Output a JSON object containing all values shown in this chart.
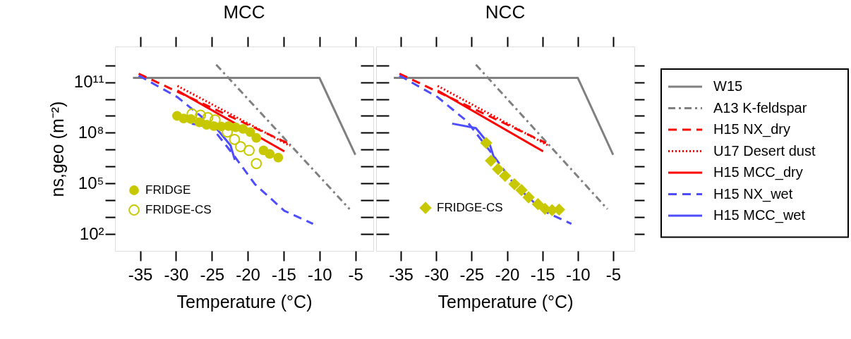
{
  "chart_data": [
    {
      "type": "line",
      "title": "MCC",
      "xlabel": "Temperature (°C)",
      "ylabel": "ns,geo (m⁻²)",
      "xlim": [
        -38.5,
        -2.5
      ],
      "xticks": [
        -35,
        -30,
        -25,
        -20,
        -15,
        -10,
        -5
      ],
      "ylim": [
        10,
        13000000000000.0
      ],
      "log": true,
      "yticks": [
        {
          "value": 100.0,
          "label": "10²"
        },
        {
          "value": 1000.0,
          "label": null
        },
        {
          "value": 10000.0,
          "label": null
        },
        {
          "value": 100000.0,
          "label": "10⁵"
        },
        {
          "value": 1000000.0,
          "label": null
        },
        {
          "value": 10000000.0,
          "label": null
        },
        {
          "value": 100000000.0,
          "label": "10⁸"
        },
        {
          "value": 1000000000.0,
          "label": null
        },
        {
          "value": 10000000000.0,
          "label": null
        },
        {
          "value": 100000000000.0,
          "label": "10¹¹"
        },
        {
          "value": 1000000000000.0,
          "label": null
        }
      ],
      "grid": false,
      "legend": "bottom left",
      "series": [
        {
          "color": "#808080",
          "line_style": "solid",
          "x": [
            -36,
            -10,
            -5
          ],
          "values": [
            180000000000.0,
            180000000000.0,
            5000000.0
          ]
        },
        {
          "color": "#808080",
          "line_style": "dashdot",
          "x": [
            -24.4,
            -5.8
          ],
          "values": [
            1100000000000.0,
            3000.0
          ]
        },
        {
          "color": "#ff0000",
          "line_style": "dashed",
          "x": [
            -35.2,
            -14.5
          ],
          "values": [
            320000000000.0,
            25000000.0
          ]
        },
        {
          "color": "#ff0000",
          "line_style": "dotted",
          "x": [
            -29.8,
            -14.1
          ],
          "values": [
            60000000000.0,
            17000000.0
          ]
        },
        {
          "color": "#ff0000",
          "line_style": "solid",
          "x": [
            -29.8,
            -14.9
          ],
          "values": [
            32000000000.0,
            8000000.0
          ]
        },
        {
          "color": "#4d4dff",
          "line_style": "dashed",
          "x": [
            -35.2,
            -29.8,
            -25.7,
            -22.0,
            -19.0,
            -14.9,
            -10.9
          ],
          "values": [
            250000000000.0,
            13000000000.0,
            500000000.0,
            5000000.0,
            90000.0,
            2400.0,
            400.0
          ]
        },
        {
          "color": "#4d4dff",
          "line_style": "solid",
          "x": [
            -27.8,
            -24.4,
            -22.4,
            -21.8
          ],
          "values": [
            350000000.0,
            190000000.0,
            18000000.0,
            2500000.0
          ]
        },
        {
          "name": "FRIDGE",
          "type": "scatter",
          "marker": "circle",
          "color": "#c8c800",
          "x": [
            -29.85,
            -28.94,
            -27.93,
            -26.75,
            -25.73,
            -24.72,
            -23.71,
            -22.69,
            -21.68,
            -20.66,
            -19.65,
            -18.8,
            -17.8,
            -16.94,
            -15.75
          ],
          "values": [
            1000000000.0,
            700000000.0,
            650000000.0,
            420000000.0,
            300000000.0,
            250000000.0,
            240000000.0,
            250000000.0,
            210000000.0,
            170000000.0,
            110000000.0,
            50000000.0,
            9000000.0,
            5600000.0,
            3400000.0
          ]
        },
        {
          "name": "FRIDGE-CS",
          "type": "scatter",
          "marker": "circle-open",
          "color": "#c8c800",
          "x": [
            -27.76,
            -26.58,
            -25.56,
            -24.55,
            -22.85,
            -21.84,
            -21.0,
            -19.81,
            -18.8
          ],
          "values": [
            1300000000.0,
            1100000000.0,
            800000000.0,
            580000000.0,
            110000000.0,
            40000000.0,
            15000000.0,
            9000000.0,
            1500000.0
          ]
        }
      ]
    },
    {
      "type": "line",
      "title": "NCC",
      "xlabel": "Temperature (°C)",
      "xlim": [
        -38.5,
        -2
      ],
      "xticks": [
        -35,
        -30,
        -25,
        -20,
        -15,
        -10,
        -5
      ],
      "ylim": [
        10,
        13000000000000.0
      ],
      "log": true,
      "yticks": [
        {
          "value": 100.0,
          "label": null
        },
        {
          "value": 1000.0,
          "label": null
        },
        {
          "value": 10000.0,
          "label": null
        },
        {
          "value": 100000.0,
          "label": null
        },
        {
          "value": 1000000.0,
          "label": null
        },
        {
          "value": 10000000.0,
          "label": null
        },
        {
          "value": 100000000.0,
          "label": null
        },
        {
          "value": 1000000000.0,
          "label": null
        },
        {
          "value": 10000000000.0,
          "label": null
        },
        {
          "value": 100000000000.0,
          "label": null
        },
        {
          "value": 1000000000000.0,
          "label": null
        }
      ],
      "tick_labels": "x",
      "grid": false,
      "legend": "right",
      "series": [
        {
          "name": "W15",
          "color": "#808080",
          "line_style": "solid",
          "x": [
            -36,
            -10,
            -5
          ],
          "values": [
            180000000000.0,
            180000000000.0,
            5000000.0
          ]
        },
        {
          "name": "A13 K-feldspar",
          "color": "#808080",
          "line_style": "dashdot",
          "x": [
            -24.4,
            -5.8
          ],
          "values": [
            1100000000000.0,
            3000.0
          ]
        },
        {
          "name": "H15 NX_dry",
          "color": "#ff0000",
          "line_style": "dashed",
          "x": [
            -35.2,
            -14.5
          ],
          "values": [
            320000000000.0,
            25000000.0
          ]
        },
        {
          "name": "U17 Desert dust",
          "color": "#ff0000",
          "line_style": "dotted",
          "x": [
            -29.8,
            -14.1
          ],
          "values": [
            60000000000.0,
            17000000.0
          ]
        },
        {
          "name": "H15 MCC_dry",
          "color": "#ff0000",
          "line_style": "solid",
          "x": [
            -29.8,
            -14.9
          ],
          "values": [
            32000000000.0,
            8000000.0
          ]
        },
        {
          "name": "H15 NX_wet",
          "color": "#4d4dff",
          "line_style": "dashed",
          "x": [
            -35.2,
            -29.8,
            -25.7,
            -22.0,
            -19.0,
            -14.9,
            -10.9
          ],
          "values": [
            250000000000.0,
            13000000000.0,
            500000000.0,
            5000000.0,
            90000.0,
            2400.0,
            400.0
          ]
        },
        {
          "name": "H15 MCC_wet",
          "color": "#4d4dff",
          "line_style": "solid",
          "x": [
            -27.75,
            -24.4,
            -22.4,
            -21.8
          ],
          "values": [
            350000000.0,
            190000000.0,
            18000000.0,
            3000000.0
          ]
        },
        {
          "name": "FRIDGE-CS",
          "type": "scatter",
          "marker": "diamond",
          "color": "#c8c800",
          "x": [
            -22.94,
            -22.27,
            -21.27,
            -20.27,
            -18.95,
            -17.95,
            -16.95,
            -15.63,
            -14.63,
            -13.63,
            -12.64
          ],
          "values": [
            25000000.0,
            2200000.0,
            700000.0,
            280000.0,
            90000.0,
            40000.0,
            15000.0,
            5900.0,
            3100.0,
            2600.0,
            2800.0
          ]
        }
      ]
    }
  ]
}
